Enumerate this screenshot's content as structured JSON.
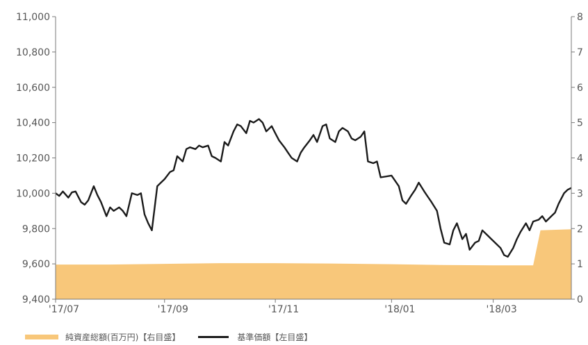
{
  "chart_data": {
    "type": "line",
    "x_start": "2017-07-03",
    "x_end": "2018-04-13",
    "x_tick_labels": [
      {
        "date": "2017-07-03",
        "label": "'17/07"
      },
      {
        "date": "2017-09-01",
        "label": "'17/09"
      },
      {
        "date": "2017-11-01",
        "label": "'17/11"
      },
      {
        "date": "2018-01-04",
        "label": "'18/01"
      },
      {
        "date": "2018-03-01",
        "label": "'18/03"
      }
    ],
    "y_left": {
      "min": 9400,
      "max": 11000,
      "ticks": [
        9400,
        9600,
        9800,
        10000,
        10200,
        10400,
        10600,
        10800,
        11000
      ],
      "tick_labels": [
        "9,400",
        "9,600",
        "9,800",
        "10,000",
        "10,200",
        "10,400",
        "10,600",
        "10,800",
        "11,000"
      ]
    },
    "y_right": {
      "min": 0,
      "max": 8,
      "ticks": [
        0,
        1,
        2,
        3,
        4,
        5,
        6,
        7,
        8
      ],
      "tick_labels": [
        "0",
        "1",
        "2",
        "3",
        "4",
        "5",
        "6",
        "7",
        "8"
      ]
    },
    "series": [
      {
        "name": "純資産総額(百万円)【右目盛】",
        "kind": "area",
        "axis": "right",
        "color": "#f8c77a",
        "points": [
          [
            "2017-07-03",
            0.98
          ],
          [
            "2017-08-01",
            0.98
          ],
          [
            "2017-09-01",
            1.0
          ],
          [
            "2017-10-01",
            1.02
          ],
          [
            "2017-11-01",
            1.02
          ],
          [
            "2017-12-01",
            1.01
          ],
          [
            "2018-01-04",
            0.99
          ],
          [
            "2018-02-01",
            0.97
          ],
          [
            "2018-03-01",
            0.96
          ],
          [
            "2018-03-23",
            0.96
          ],
          [
            "2018-03-27",
            1.95
          ],
          [
            "2018-04-13",
            1.98
          ]
        ]
      },
      {
        "name": "基準価額【左目盛】",
        "kind": "line",
        "axis": "left",
        "color": "#1a1a1a",
        "points": [
          [
            "2017-07-03",
            10000
          ],
          [
            "2017-07-05",
            9985
          ],
          [
            "2017-07-07",
            10010
          ],
          [
            "2017-07-10",
            9975
          ],
          [
            "2017-07-12",
            10005
          ],
          [
            "2017-07-14",
            10010
          ],
          [
            "2017-07-17",
            9950
          ],
          [
            "2017-07-19",
            9935
          ],
          [
            "2017-07-21",
            9960
          ],
          [
            "2017-07-24",
            10040
          ],
          [
            "2017-07-26",
            9990
          ],
          [
            "2017-07-28",
            9950
          ],
          [
            "2017-07-31",
            9870
          ],
          [
            "2017-08-02",
            9920
          ],
          [
            "2017-08-04",
            9900
          ],
          [
            "2017-08-07",
            9920
          ],
          [
            "2017-08-09",
            9900
          ],
          [
            "2017-08-11",
            9870
          ],
          [
            "2017-08-14",
            10000
          ],
          [
            "2017-08-17",
            9990
          ],
          [
            "2017-08-19",
            10000
          ],
          [
            "2017-08-21",
            9880
          ],
          [
            "2017-08-23",
            9830
          ],
          [
            "2017-08-25",
            9790
          ],
          [
            "2017-08-28",
            10040
          ],
          [
            "2017-08-30",
            10060
          ],
          [
            "2017-09-01",
            10080
          ],
          [
            "2017-09-04",
            10120
          ],
          [
            "2017-09-06",
            10130
          ],
          [
            "2017-09-08",
            10210
          ],
          [
            "2017-09-11",
            10180
          ],
          [
            "2017-09-13",
            10250
          ],
          [
            "2017-09-15",
            10260
          ],
          [
            "2017-09-18",
            10250
          ],
          [
            "2017-09-20",
            10270
          ],
          [
            "2017-09-22",
            10260
          ],
          [
            "2017-09-25",
            10270
          ],
          [
            "2017-09-27",
            10210
          ],
          [
            "2017-09-29",
            10200
          ],
          [
            "2017-10-02",
            10180
          ],
          [
            "2017-10-04",
            10290
          ],
          [
            "2017-10-06",
            10270
          ],
          [
            "2017-10-09",
            10350
          ],
          [
            "2017-10-11",
            10390
          ],
          [
            "2017-10-13",
            10380
          ],
          [
            "2017-10-16",
            10340
          ],
          [
            "2017-10-18",
            10410
          ],
          [
            "2017-10-20",
            10400
          ],
          [
            "2017-10-23",
            10420
          ],
          [
            "2017-10-25",
            10400
          ],
          [
            "2017-10-27",
            10350
          ],
          [
            "2017-10-30",
            10380
          ],
          [
            "2017-11-01",
            10340
          ],
          [
            "2017-11-03",
            10300
          ],
          [
            "2017-11-06",
            10260
          ],
          [
            "2017-11-08",
            10230
          ],
          [
            "2017-11-10",
            10200
          ],
          [
            "2017-11-13",
            10180
          ],
          [
            "2017-11-15",
            10230
          ],
          [
            "2017-11-17",
            10260
          ],
          [
            "2017-11-20",
            10300
          ],
          [
            "2017-11-22",
            10330
          ],
          [
            "2017-11-24",
            10290
          ],
          [
            "2017-11-27",
            10380
          ],
          [
            "2017-11-29",
            10390
          ],
          [
            "2017-12-01",
            10310
          ],
          [
            "2017-12-04",
            10290
          ],
          [
            "2017-12-06",
            10350
          ],
          [
            "2017-12-08",
            10370
          ],
          [
            "2017-12-11",
            10350
          ],
          [
            "2017-12-13",
            10310
          ],
          [
            "2017-12-15",
            10300
          ],
          [
            "2017-12-18",
            10320
          ],
          [
            "2017-12-20",
            10350
          ],
          [
            "2017-12-22",
            10180
          ],
          [
            "2017-12-25",
            10170
          ],
          [
            "2017-12-27",
            10180
          ],
          [
            "2017-12-29",
            10090
          ],
          [
            "2018-01-04",
            10100
          ],
          [
            "2018-01-08",
            10040
          ],
          [
            "2018-01-10",
            9960
          ],
          [
            "2018-01-12",
            9940
          ],
          [
            "2018-01-15",
            9990
          ],
          [
            "2018-01-17",
            10020
          ],
          [
            "2018-01-19",
            10060
          ],
          [
            "2018-01-22",
            10010
          ],
          [
            "2018-01-24",
            9980
          ],
          [
            "2018-01-26",
            9950
          ],
          [
            "2018-01-29",
            9900
          ],
          [
            "2018-01-31",
            9800
          ],
          [
            "2018-02-02",
            9720
          ],
          [
            "2018-02-05",
            9710
          ],
          [
            "2018-02-07",
            9790
          ],
          [
            "2018-02-09",
            9830
          ],
          [
            "2018-02-12",
            9740
          ],
          [
            "2018-02-14",
            9770
          ],
          [
            "2018-02-16",
            9680
          ],
          [
            "2018-02-19",
            9720
          ],
          [
            "2018-02-21",
            9730
          ],
          [
            "2018-02-23",
            9790
          ],
          [
            "2018-02-26",
            9760
          ],
          [
            "2018-02-28",
            9740
          ],
          [
            "2018-03-02",
            9720
          ],
          [
            "2018-03-05",
            9690
          ],
          [
            "2018-03-07",
            9650
          ],
          [
            "2018-03-09",
            9640
          ],
          [
            "2018-03-12",
            9690
          ],
          [
            "2018-03-14",
            9740
          ],
          [
            "2018-03-16",
            9780
          ],
          [
            "2018-03-19",
            9830
          ],
          [
            "2018-03-21",
            9790
          ],
          [
            "2018-03-23",
            9840
          ],
          [
            "2018-03-26",
            9850
          ],
          [
            "2018-03-28",
            9870
          ],
          [
            "2018-03-30",
            9840
          ],
          [
            "2018-04-02",
            9870
          ],
          [
            "2018-04-04",
            9890
          ],
          [
            "2018-04-06",
            9940
          ],
          [
            "2018-04-09",
            10000
          ],
          [
            "2018-04-11",
            10020
          ],
          [
            "2018-04-13",
            10030
          ]
        ]
      }
    ],
    "grid": false,
    "legend_position": "bottom-left"
  }
}
